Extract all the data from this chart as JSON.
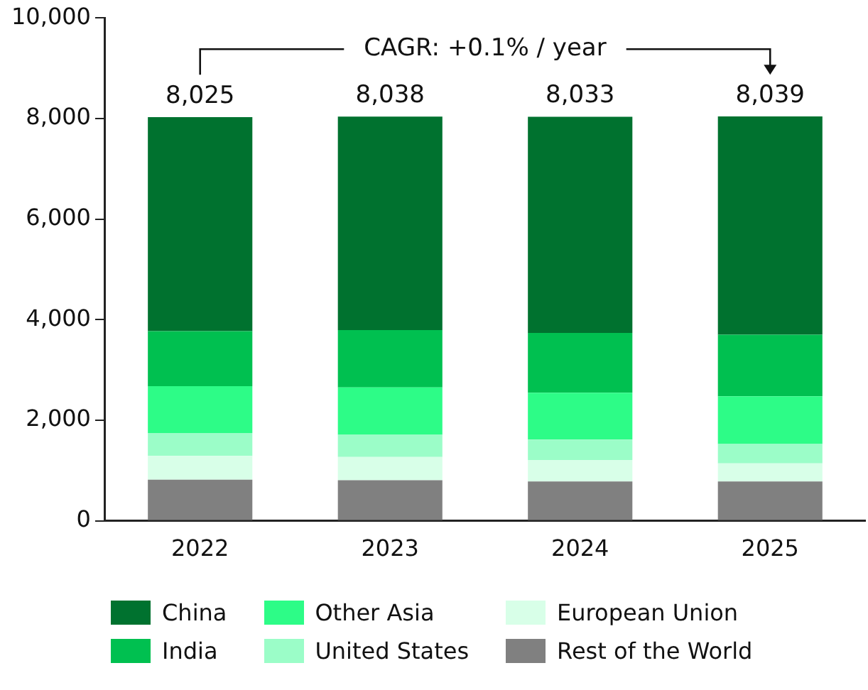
{
  "chart_data": {
    "type": "bar",
    "stacked": true,
    "categories": [
      "2022",
      "2023",
      "2024",
      "2025"
    ],
    "series": [
      {
        "name": "Rest of the World",
        "color": "#808080",
        "values": [
          815,
          805,
          780,
          780
        ]
      },
      {
        "name": "European Union",
        "color": "#d8ffe8",
        "values": [
          475,
          465,
          430,
          360
        ]
      },
      {
        "name": "United States",
        "color": "#9bfdc8",
        "values": [
          455,
          440,
          405,
          385
        ]
      },
      {
        "name": "Other Asia",
        "color": "#2dfc87",
        "values": [
          930,
          940,
          930,
          950
        ]
      },
      {
        "name": "India",
        "color": "#00c050",
        "values": [
          1095,
          1140,
          1190,
          1225
        ]
      },
      {
        "name": "China",
        "color": "#00722f",
        "values": [
          4255,
          4248,
          4298,
          4339
        ]
      }
    ],
    "totals": [
      "8,025",
      "8,038",
      "8,033",
      "8,039"
    ],
    "ylim": [
      0,
      10000
    ],
    "yticks": [
      0,
      {
        "value": 2000,
        "label": "2,000"
      },
      {
        "value": 4000,
        "label": "4,000"
      },
      {
        "value": 6000,
        "label": "6,000"
      },
      {
        "value": 8000,
        "label": "8,000"
      },
      {
        "value": 10000,
        "label": "10,000"
      }
    ],
    "grid": false,
    "legend": "bottom",
    "annotations": [
      "CAGR: +0.1% / year"
    ]
  }
}
